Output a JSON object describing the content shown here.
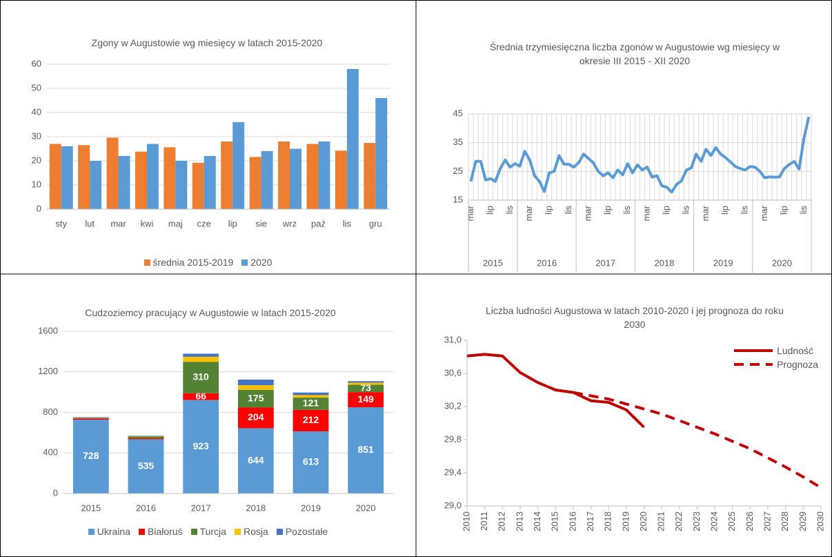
{
  "chart_data": [
    {
      "type": "bar",
      "title": "Zgony w Augustowie wg miesięcy w latach 2015-2020",
      "categories": [
        "sty",
        "lut",
        "mar",
        "kwi",
        "maj",
        "cze",
        "lip",
        "sie",
        "wrz",
        "paź",
        "lis",
        "gru"
      ],
      "series": [
        {
          "name": "średnia 2015-2019",
          "color": "#ed7d31",
          "values": [
            27,
            26.5,
            29.6,
            23.8,
            25.6,
            19.2,
            28,
            21.6,
            28,
            27,
            24.2,
            27.4
          ]
        },
        {
          "name": "2020",
          "color": "#5b9bd5",
          "values": [
            26,
            20,
            22,
            27,
            20,
            22,
            36,
            24,
            25,
            28,
            58,
            46
          ]
        }
      ],
      "ylim": [
        0,
        60
      ],
      "yticks": [
        0,
        10,
        20,
        30,
        40,
        50,
        60
      ],
      "grid": true,
      "legend": "bottom"
    },
    {
      "type": "line",
      "title": "Średnia trzymiesięczna liczba zgonów w Augustowie wg miesięcy w okresie III 2015 - XII 2020",
      "categories": [
        "mar",
        null,
        null,
        null,
        "lip",
        null,
        null,
        null,
        "lis",
        null,
        null,
        null,
        "mar",
        null,
        null,
        null,
        "lip",
        null,
        null,
        null,
        "lis",
        null,
        null,
        null,
        "mar",
        null,
        null,
        null,
        "lip",
        null,
        null,
        null,
        "lis",
        null,
        null,
        null,
        "mar",
        null,
        null,
        null,
        "lip",
        null,
        null,
        null,
        "lis",
        null,
        null,
        null,
        "mar",
        null,
        null,
        null,
        "lip",
        null,
        null,
        null,
        "lis",
        null,
        null,
        null,
        "mar",
        null,
        null,
        null,
        "lip",
        null,
        null,
        null,
        "lis",
        null
      ],
      "years": [
        "2015",
        "2016",
        "2017",
        "2018",
        "2019",
        "2020"
      ],
      "series": [
        {
          "name": null,
          "color": "#5b9bd5",
          "values": [
            21.5,
            28.5,
            28.5,
            22,
            22.5,
            21.5,
            26,
            29,
            26.5,
            27.7,
            26.8,
            32,
            29,
            23.5,
            21.5,
            18,
            24.5,
            25,
            30.5,
            27.5,
            27.5,
            26.5,
            28,
            31,
            29.5,
            28,
            25,
            23.5,
            24.5,
            22.8,
            25.5,
            23.8,
            27.7,
            24.5,
            27.3,
            25.5,
            26.5,
            23,
            23.5,
            20,
            19.5,
            17.8,
            20.5,
            21.7,
            25.5,
            26.2,
            31,
            28.5,
            32.7,
            30.5,
            33.3,
            31,
            29.8,
            28.3,
            26.7,
            26,
            25.5,
            26.7,
            26.5,
            25,
            22.8,
            23.1,
            23,
            23.1,
            26,
            27.4,
            28.5,
            25.8,
            36.5,
            44
          ]
        }
      ],
      "ylim": [
        15,
        45
      ],
      "yticks": [
        15,
        25,
        35,
        45
      ],
      "grid": true,
      "x_grid": true
    },
    {
      "type": "stacked_bar",
      "title": "Cudzoziemcy pracujący w Augustowie w latach 2015-2020",
      "categories": [
        "2015",
        "2016",
        "2017",
        "2018",
        "2019",
        "2020"
      ],
      "series": [
        {
          "name": "Ukraina",
          "color": "#5b9bd5",
          "values": [
            728,
            535,
            923,
            644,
            613,
            851
          ],
          "data_labels": [
            true,
            true,
            true,
            true,
            true,
            true
          ]
        },
        {
          "name": "Białoruś",
          "color": "#ff0000",
          "values": [
            12,
            10,
            66,
            204,
            212,
            149
          ],
          "data_labels": [
            false,
            false,
            true,
            true,
            true,
            true
          ]
        },
        {
          "name": "Turcja",
          "color": "#548235",
          "values": [
            5,
            18,
            310,
            175,
            121,
            73
          ],
          "data_labels": [
            false,
            false,
            true,
            true,
            true,
            true
          ]
        },
        {
          "name": "Rosja",
          "color": "#ffc000",
          "values": [
            3,
            3,
            50,
            45,
            25,
            20
          ]
        },
        {
          "name": "Pozostałe",
          "color": "#4472c4",
          "values": [
            5,
            4,
            30,
            55,
            25,
            15
          ]
        }
      ],
      "ylim": [
        0,
        1600
      ],
      "yticks": [
        0,
        400,
        800,
        1200,
        1600
      ],
      "grid": true,
      "legend": "bottom"
    },
    {
      "type": "line",
      "title": "Liczba ludności Augustowa w latach 2010-2020 i jej prognoza do roku 2030",
      "x": [
        2010,
        2011,
        2012,
        2013,
        2014,
        2015,
        2016,
        2017,
        2018,
        2019,
        2020,
        2021,
        2022,
        2023,
        2024,
        2025,
        2026,
        2027,
        2028,
        2029,
        2030
      ],
      "series": [
        {
          "name": "Ludność",
          "color": "#c00000",
          "values": [
            30.81,
            30.83,
            30.81,
            30.61,
            30.49,
            30.4,
            30.37,
            30.27,
            30.25,
            30.16,
            29.95,
            null,
            null,
            null,
            null,
            null,
            null,
            null,
            null,
            null,
            null
          ]
        },
        {
          "name": "Prognoza",
          "color": "#c00000",
          "dashed": true,
          "values": [
            null,
            null,
            null,
            null,
            null,
            null,
            30.37,
            30.33,
            30.29,
            30.23,
            30.17,
            30.11,
            30.03,
            29.95,
            29.87,
            29.78,
            29.69,
            29.58,
            29.47,
            29.35,
            29.22
          ]
        }
      ],
      "xlim": [
        2010,
        2030
      ],
      "xticks": [
        2010,
        2011,
        2012,
        2013,
        2014,
        2015,
        2016,
        2017,
        2018,
        2019,
        2020,
        2021,
        2022,
        2023,
        2024,
        2025,
        2026,
        2027,
        2028,
        2029,
        2030
      ],
      "ylim": [
        29,
        31
      ],
      "yticks": [
        {
          "value": 29,
          "label": "29,0"
        },
        {
          "value": 29.4,
          "label": "29,4"
        },
        {
          "value": 29.8,
          "label": "29,8"
        },
        {
          "value": 30.2,
          "label": "30,2"
        },
        {
          "value": 30.6,
          "label": "30,6"
        },
        {
          "value": 31,
          "label": "31,0"
        }
      ],
      "grid": false,
      "legend": "top-right"
    }
  ]
}
